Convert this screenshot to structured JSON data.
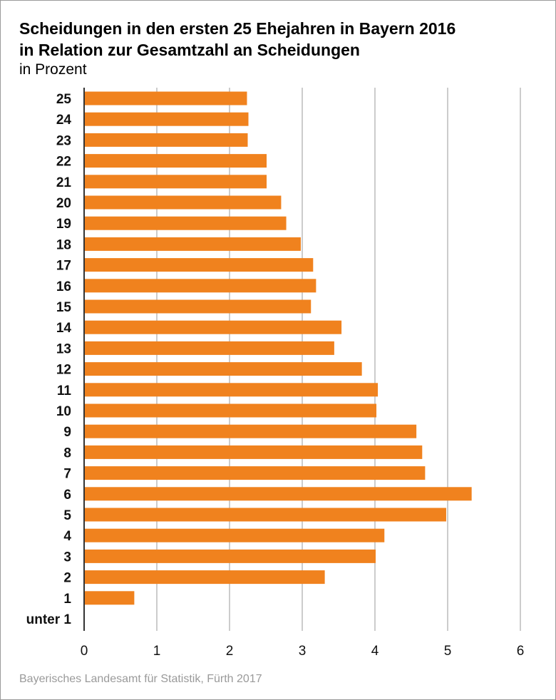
{
  "title_line1": "Scheidungen in den ersten 25 Ehejahren in Bayern 2016",
  "title_line2": "in Relation zur Gesamtzahl an Scheidungen",
  "subtitle": "in Prozent",
  "source": "Bayerisches Landesamt für Statistik, Fürth 2017",
  "colors": {
    "bar": "#f0821e",
    "grid": "#9a9a9a",
    "axis": "#333333"
  },
  "chart_data": {
    "type": "bar",
    "orientation": "horizontal",
    "title": "Scheidungen in den ersten 25 Ehejahren in Bayern 2016 in Relation zur Gesamtzahl an Scheidungen",
    "subtitle": "in Prozent",
    "categories": [
      "25",
      "24",
      "23",
      "22",
      "21",
      "20",
      "19",
      "18",
      "17",
      "16",
      "15",
      "14",
      "13",
      "12",
      "11",
      "10",
      "9",
      "8",
      "7",
      "6",
      "5",
      "4",
      "3",
      "2",
      "1",
      "unter 1"
    ],
    "values": [
      2.24,
      2.26,
      2.25,
      2.51,
      2.51,
      2.71,
      2.78,
      2.98,
      3.15,
      3.19,
      3.12,
      3.54,
      3.44,
      3.82,
      4.04,
      4.02,
      4.57,
      4.65,
      4.69,
      5.33,
      4.98,
      4.13,
      4.01,
      3.31,
      0.69,
      0
    ],
    "xlim": [
      0,
      6
    ],
    "xticks": [
      "0",
      "1",
      "2",
      "3",
      "4",
      "5",
      "6"
    ],
    "grid": true,
    "legend": "none"
  }
}
